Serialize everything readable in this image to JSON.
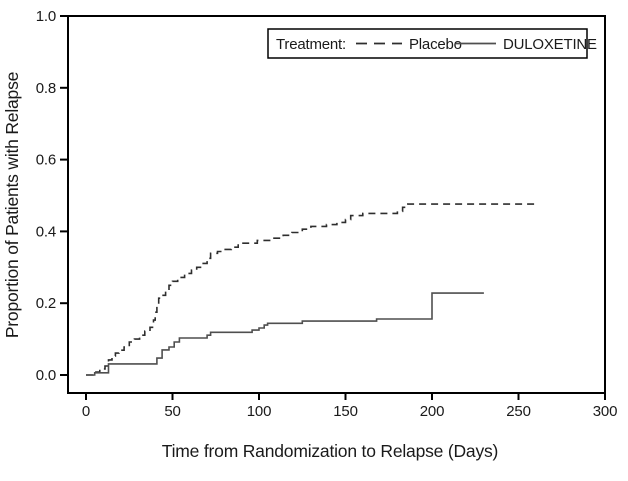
{
  "chart_data": {
    "type": "line",
    "subtype": "kaplan-meier-step",
    "title": "",
    "xlabel": "Time from Randomization to Relapse (Days)",
    "ylabel": "Proportion of Patients with Relapse",
    "xlim": [
      0,
      300
    ],
    "ylim": [
      0.0,
      1.0
    ],
    "x_ticks": [
      0,
      50,
      100,
      150,
      200,
      250,
      300
    ],
    "x_tick_labels": [
      "0",
      "50",
      "100",
      "150",
      "200",
      "250",
      "300"
    ],
    "y_ticks": [
      0.0,
      0.2,
      0.4,
      0.6,
      0.8,
      1.0
    ],
    "y_tick_labels": [
      "0.0",
      "0.2",
      "0.4",
      "0.6",
      "0.8",
      "1.0"
    ],
    "grid": false,
    "legend": {
      "title": "Treatment:",
      "position": "top-right-inside"
    },
    "axis_color": "#000000",
    "background_color": "#ffffff",
    "series": [
      {
        "name": "Placebo",
        "line_style": "dashed",
        "color": "#2e2e2e",
        "final_value": 0.476,
        "end_day": 260,
        "points": [
          [
            0,
            0
          ],
          [
            4,
            0.008
          ],
          [
            8,
            0.017
          ],
          [
            11,
            0.025
          ],
          [
            13,
            0.042
          ],
          [
            15,
            0.053
          ],
          [
            17,
            0.061
          ],
          [
            19,
            0.069
          ],
          [
            22,
            0.078
          ],
          [
            25,
            0.092
          ],
          [
            28,
            0.1
          ],
          [
            31,
            0.111
          ],
          [
            34,
            0.122
          ],
          [
            37,
            0.133
          ],
          [
            39,
            0.153
          ],
          [
            40,
            0.175
          ],
          [
            41,
            0.194
          ],
          [
            42,
            0.214
          ],
          [
            44,
            0.222
          ],
          [
            46,
            0.236
          ],
          [
            48,
            0.25
          ],
          [
            50,
            0.261
          ],
          [
            53,
            0.272
          ],
          [
            57,
            0.283
          ],
          [
            61,
            0.292
          ],
          [
            64,
            0.3
          ],
          [
            67,
            0.311
          ],
          [
            70,
            0.325
          ],
          [
            72,
            0.339
          ],
          [
            76,
            0.344
          ],
          [
            80,
            0.35
          ],
          [
            84,
            0.356
          ],
          [
            88,
            0.367
          ],
          [
            99,
            0.375
          ],
          [
            108,
            0.381
          ],
          [
            114,
            0.389
          ],
          [
            119,
            0.397
          ],
          [
            125,
            0.406
          ],
          [
            130,
            0.414
          ],
          [
            139,
            0.419
          ],
          [
            145,
            0.425
          ],
          [
            150,
            0.433
          ],
          [
            153,
            0.444
          ],
          [
            160,
            0.45
          ],
          [
            180,
            0.456
          ],
          [
            183,
            0.467
          ],
          [
            186,
            0.476
          ],
          [
            260,
            0.476
          ]
        ]
      },
      {
        "name": "DULOXETINE",
        "line_style": "solid",
        "color": "#4f4f4f",
        "final_value": 0.228,
        "end_day": 230,
        "points": [
          [
            0,
            0
          ],
          [
            5,
            0.006
          ],
          [
            13,
            0.031
          ],
          [
            41,
            0.047
          ],
          [
            44,
            0.07
          ],
          [
            48,
            0.078
          ],
          [
            51,
            0.092
          ],
          [
            54,
            0.103
          ],
          [
            70,
            0.111
          ],
          [
            72,
            0.119
          ],
          [
            96,
            0.125
          ],
          [
            100,
            0.131
          ],
          [
            103,
            0.139
          ],
          [
            105,
            0.144
          ],
          [
            125,
            0.15
          ],
          [
            168,
            0.156
          ],
          [
            200,
            0.228
          ],
          [
            230,
            0.228
          ]
        ]
      }
    ]
  }
}
